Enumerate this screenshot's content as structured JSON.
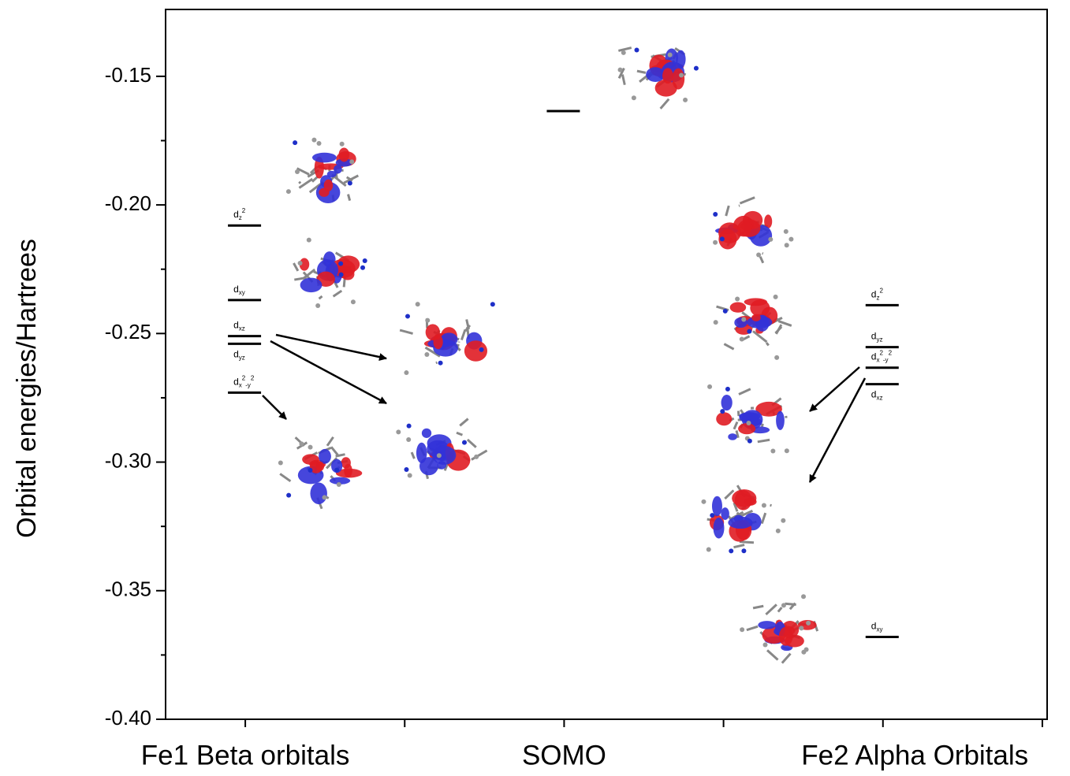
{
  "chart_data": {
    "type": "energy-levels",
    "y_label": "Orbital energies/Hartrees",
    "ylim": [
      -0.4,
      -0.124
    ],
    "yticks": [
      {
        "value": -0.4,
        "label": "-0.40"
      },
      {
        "value": -0.35,
        "label": "-0.35"
      },
      {
        "value": -0.3,
        "label": "-0.30"
      },
      {
        "value": -0.25,
        "label": "-0.25"
      },
      {
        "value": -0.2,
        "label": "-0.20"
      },
      {
        "value": -0.15,
        "label": "-0.15"
      }
    ],
    "xlim": [
      0.5,
      6.03
    ],
    "xticks": [
      1,
      2,
      3,
      4,
      5,
      6
    ],
    "x_labels": [
      {
        "value": 1,
        "label": "Fe1 Beta orbitals"
      },
      {
        "value": 3,
        "label": "SOMO"
      },
      {
        "value": 5.2,
        "label": "Fe2  Alpha Orbitals"
      }
    ],
    "color": "#000000",
    "levels": [
      {
        "x": 1,
        "energy": -0.208,
        "label": "d",
        "sub": "z",
        "sup": "2"
      },
      {
        "x": 1,
        "energy": -0.237,
        "label": "d",
        "sub": "xy"
      },
      {
        "x": 1,
        "energy": -0.251,
        "label": "d",
        "sub": "xz"
      },
      {
        "x": 1,
        "energy": -0.254,
        "label": "d",
        "sub": "yz"
      },
      {
        "x": 1,
        "energy": -0.273,
        "label": "d",
        "sub": "x",
        "sup": "2",
        "sub2": "-y",
        "sup2": "2"
      },
      {
        "x": 3,
        "energy": -0.1635
      },
      {
        "x": 5,
        "energy": -0.239,
        "label": "d",
        "sub": "z",
        "sup": "2"
      },
      {
        "x": 5,
        "energy": -0.2553,
        "label": "d",
        "sub": "yz"
      },
      {
        "x": 5,
        "energy": -0.2633,
        "label": "d",
        "sub": "x",
        "sup": "2",
        "sub2": "-y",
        "sup2": "2"
      },
      {
        "x": 5,
        "energy": -0.2697,
        "label": "d",
        "sub": "xz"
      },
      {
        "x": 5,
        "energy": -0.368,
        "label": "d",
        "sub": "xy"
      }
    ]
  }
}
